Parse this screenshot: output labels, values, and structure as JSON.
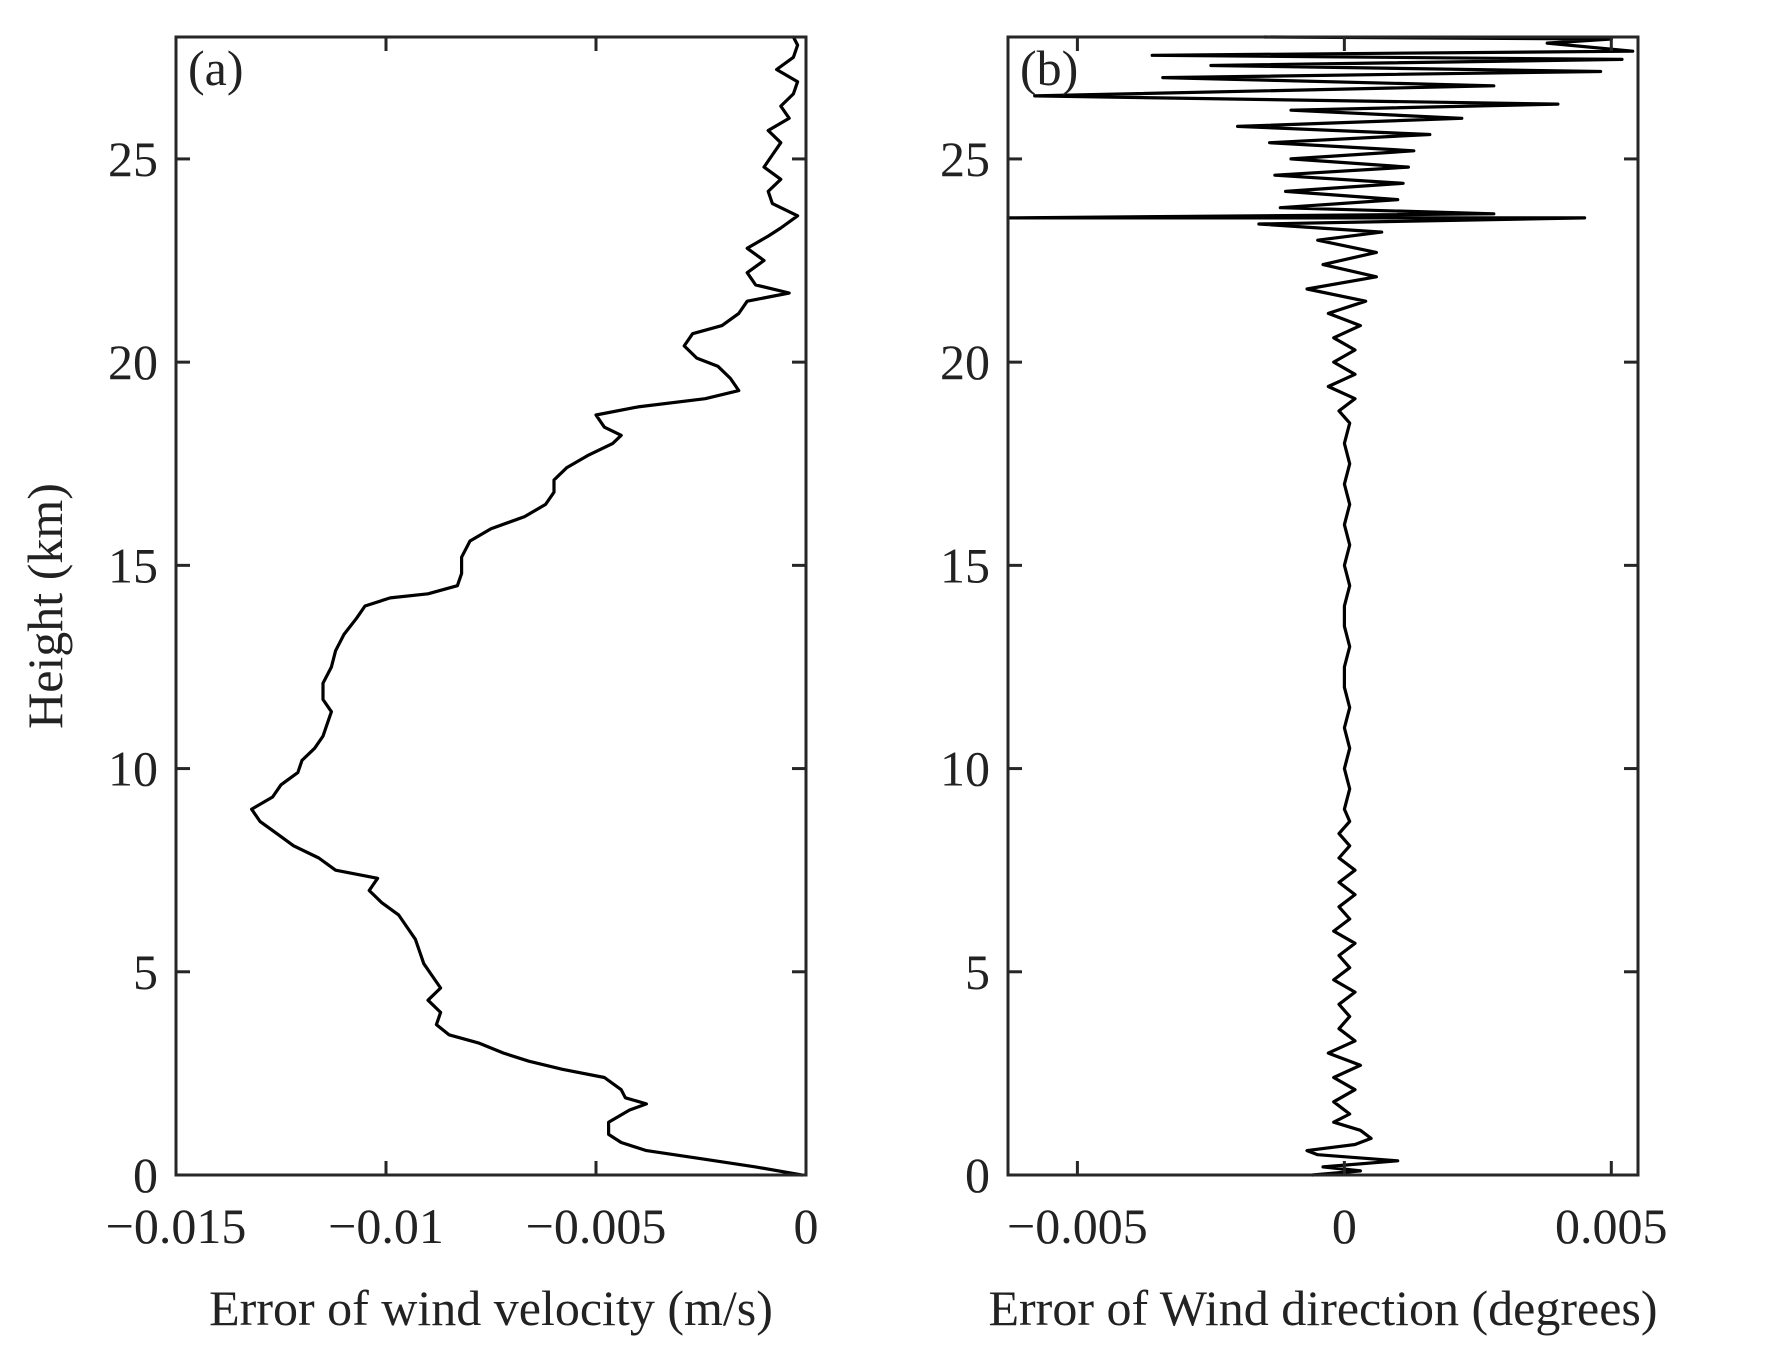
{
  "chart_data": [
    {
      "type": "line",
      "panel_label": "(a)",
      "xlabel": "Error of wind velocity (m/s)",
      "ylabel": "Height (km)",
      "xlim": [
        -0.015,
        0
      ],
      "ylim": [
        0,
        28
      ],
      "xticks": [
        -0.015,
        -0.01,
        -0.005,
        0
      ],
      "xtick_labels": [
        "−0.015",
        "−0.01",
        "−0.005",
        "0"
      ],
      "yticks": [
        0,
        5,
        10,
        15,
        20,
        25
      ],
      "ytick_labels": [
        "0",
        "5",
        "10",
        "15",
        "20",
        "25"
      ],
      "grid": false,
      "series": [
        {
          "color": "#000000",
          "points": [
            [
              -0.0001,
              0.0
            ],
            [
              -0.0012,
              0.2
            ],
            [
              -0.0025,
              0.4
            ],
            [
              -0.0038,
              0.6
            ],
            [
              -0.0044,
              0.8
            ],
            [
              -0.0047,
              1.0
            ],
            [
              -0.0047,
              1.3
            ],
            [
              -0.0042,
              1.6
            ],
            [
              -0.0038,
              1.75
            ],
            [
              -0.0043,
              1.9
            ],
            [
              -0.0044,
              2.1
            ],
            [
              -0.0048,
              2.4
            ],
            [
              -0.0058,
              2.6
            ],
            [
              -0.0066,
              2.8
            ],
            [
              -0.0072,
              3.0
            ],
            [
              -0.0078,
              3.25
            ],
            [
              -0.0085,
              3.45
            ],
            [
              -0.0088,
              3.7
            ],
            [
              -0.0087,
              4.0
            ],
            [
              -0.009,
              4.3
            ],
            [
              -0.0087,
              4.6
            ],
            [
              -0.0089,
              4.9
            ],
            [
              -0.0091,
              5.2
            ],
            [
              -0.0092,
              5.5
            ],
            [
              -0.0093,
              5.8
            ],
            [
              -0.0095,
              6.1
            ],
            [
              -0.0097,
              6.4
            ],
            [
              -0.0101,
              6.7
            ],
            [
              -0.0104,
              7.0
            ],
            [
              -0.0102,
              7.3
            ],
            [
              -0.0112,
              7.5
            ],
            [
              -0.0116,
              7.8
            ],
            [
              -0.0122,
              8.1
            ],
            [
              -0.0126,
              8.4
            ],
            [
              -0.013,
              8.7
            ],
            [
              -0.0132,
              9.0
            ],
            [
              -0.0127,
              9.3
            ],
            [
              -0.0125,
              9.6
            ],
            [
              -0.0121,
              9.9
            ],
            [
              -0.012,
              10.2
            ],
            [
              -0.0117,
              10.5
            ],
            [
              -0.0115,
              10.8
            ],
            [
              -0.0114,
              11.1
            ],
            [
              -0.0113,
              11.4
            ],
            [
              -0.0115,
              11.7
            ],
            [
              -0.0115,
              12.1
            ],
            [
              -0.0113,
              12.5
            ],
            [
              -0.0112,
              12.9
            ],
            [
              -0.011,
              13.3
            ],
            [
              -0.0107,
              13.7
            ],
            [
              -0.0105,
              14.0
            ],
            [
              -0.0099,
              14.2
            ],
            [
              -0.009,
              14.3
            ],
            [
              -0.0083,
              14.5
            ],
            [
              -0.0082,
              14.8
            ],
            [
              -0.0082,
              15.2
            ],
            [
              -0.008,
              15.6
            ],
            [
              -0.0075,
              15.9
            ],
            [
              -0.0067,
              16.2
            ],
            [
              -0.0062,
              16.5
            ],
            [
              -0.006,
              16.8
            ],
            [
              -0.006,
              17.1
            ],
            [
              -0.0057,
              17.4
            ],
            [
              -0.0052,
              17.7
            ],
            [
              -0.0046,
              18.0
            ],
            [
              -0.0044,
              18.2
            ],
            [
              -0.0048,
              18.4
            ],
            [
              -0.005,
              18.7
            ],
            [
              -0.004,
              18.9
            ],
            [
              -0.0024,
              19.1
            ],
            [
              -0.0016,
              19.3
            ],
            [
              -0.0018,
              19.6
            ],
            [
              -0.0021,
              19.9
            ],
            [
              -0.0026,
              20.1
            ],
            [
              -0.0029,
              20.4
            ],
            [
              -0.0027,
              20.7
            ],
            [
              -0.002,
              20.9
            ],
            [
              -0.0016,
              21.2
            ],
            [
              -0.0014,
              21.5
            ],
            [
              -0.0004,
              21.7
            ],
            [
              -0.0012,
              21.9
            ],
            [
              -0.0014,
              22.2
            ],
            [
              -0.001,
              22.5
            ],
            [
              -0.0014,
              22.8
            ],
            [
              -0.0009,
              23.1
            ],
            [
              -0.0006,
              23.3
            ],
            [
              -0.0002,
              23.6
            ],
            [
              -0.0008,
              23.9
            ],
            [
              -0.0009,
              24.2
            ],
            [
              -0.0006,
              24.5
            ],
            [
              -0.001,
              24.8
            ],
            [
              -0.0008,
              25.1
            ],
            [
              -0.0006,
              25.4
            ],
            [
              -0.0009,
              25.7
            ],
            [
              -0.0004,
              26.0
            ],
            [
              -0.0006,
              26.3
            ],
            [
              -0.0003,
              26.6
            ],
            [
              -0.0002,
              26.9
            ],
            [
              -0.0007,
              27.2
            ],
            [
              -0.0003,
              27.5
            ],
            [
              -0.0002,
              27.8
            ],
            [
              -0.0003,
              28.0
            ]
          ]
        }
      ]
    },
    {
      "type": "line",
      "panel_label": "(b)",
      "xlabel": "Error of Wind direction (degrees)",
      "ylabel": "",
      "xlim": [
        -0.0063,
        0.0055
      ],
      "ylim": [
        0,
        28
      ],
      "xticks": [
        -0.005,
        0,
        0.005
      ],
      "xtick_labels": [
        "−0.005",
        "0",
        "0.005"
      ],
      "yticks": [
        0,
        5,
        10,
        15,
        20,
        25
      ],
      "ytick_labels": [
        "0",
        "5",
        "10",
        "15",
        "20",
        "25"
      ],
      "grid": false,
      "series": [
        {
          "color": "#000000",
          "points": [
            [
              -0.0006,
              0.0
            ],
            [
              0.0003,
              0.1
            ],
            [
              -0.0004,
              0.2
            ],
            [
              0.001,
              0.35
            ],
            [
              -0.0005,
              0.5
            ],
            [
              -0.0007,
              0.6
            ],
            [
              0.0002,
              0.75
            ],
            [
              0.0005,
              0.9
            ],
            [
              0.0003,
              1.1
            ],
            [
              -0.0002,
              1.3
            ],
            [
              0.0001,
              1.5
            ],
            [
              -0.0002,
              1.8
            ],
            [
              0.0002,
              2.1
            ],
            [
              -0.0002,
              2.4
            ],
            [
              0.0003,
              2.7
            ],
            [
              -0.0003,
              3.0
            ],
            [
              0.0002,
              3.3
            ],
            [
              -0.0001,
              3.6
            ],
            [
              0.0001,
              3.9
            ],
            [
              -0.0001,
              4.2
            ],
            [
              0.0002,
              4.5
            ],
            [
              -0.0002,
              4.8
            ],
            [
              0.0001,
              5.1
            ],
            [
              -0.0001,
              5.4
            ],
            [
              0.0002,
              5.7
            ],
            [
              -0.0002,
              6.0
            ],
            [
              0.0001,
              6.3
            ],
            [
              -0.0001,
              6.6
            ],
            [
              0.0002,
              6.9
            ],
            [
              -0.0001,
              7.2
            ],
            [
              0.0002,
              7.5
            ],
            [
              -0.0001,
              7.8
            ],
            [
              0.0001,
              8.1
            ],
            [
              -0.0001,
              8.4
            ],
            [
              0.0001,
              8.7
            ],
            [
              0.0,
              9.0
            ],
            [
              0.0001,
              9.5
            ],
            [
              0.0,
              10.0
            ],
            [
              0.0001,
              10.5
            ],
            [
              0.0,
              11.0
            ],
            [
              0.0001,
              11.5
            ],
            [
              0.0,
              12.0
            ],
            [
              0.0,
              12.5
            ],
            [
              0.0001,
              13.0
            ],
            [
              0.0,
              13.5
            ],
            [
              0.0,
              14.0
            ],
            [
              0.0001,
              14.5
            ],
            [
              0.0,
              15.0
            ],
            [
              0.0001,
              15.5
            ],
            [
              0.0,
              16.0
            ],
            [
              0.0001,
              16.5
            ],
            [
              0.0,
              17.0
            ],
            [
              0.0001,
              17.5
            ],
            [
              0.0,
              18.0
            ],
            [
              0.0001,
              18.5
            ],
            [
              -0.0001,
              18.8
            ],
            [
              0.0002,
              19.1
            ],
            [
              -0.0003,
              19.4
            ],
            [
              0.0002,
              19.7
            ],
            [
              -0.0002,
              20.0
            ],
            [
              0.0002,
              20.3
            ],
            [
              -0.0002,
              20.6
            ],
            [
              0.0003,
              20.9
            ],
            [
              -0.0003,
              21.2
            ],
            [
              0.0004,
              21.5
            ],
            [
              -0.0007,
              21.8
            ],
            [
              0.0006,
              22.1
            ],
            [
              -0.0004,
              22.4
            ],
            [
              0.0006,
              22.7
            ],
            [
              -0.0005,
              23.0
            ],
            [
              0.0007,
              23.2
            ],
            [
              -0.0016,
              23.4
            ],
            [
              0.0045,
              23.55
            ],
            [
              -0.0063,
              23.55
            ],
            [
              0.0028,
              23.65
            ],
            [
              -0.0012,
              23.8
            ],
            [
              0.001,
              24.0
            ],
            [
              -0.0011,
              24.2
            ],
            [
              0.0011,
              24.4
            ],
            [
              -0.0013,
              24.6
            ],
            [
              0.0012,
              24.8
            ],
            [
              -0.001,
              25.0
            ],
            [
              0.0013,
              25.2
            ],
            [
              -0.0014,
              25.4
            ],
            [
              0.0016,
              25.6
            ],
            [
              -0.002,
              25.8
            ],
            [
              0.0022,
              26.0
            ],
            [
              -0.001,
              26.2
            ],
            [
              0.004,
              26.35
            ],
            [
              -0.0058,
              26.55
            ],
            [
              0.0028,
              26.8
            ],
            [
              -0.0034,
              27.0
            ],
            [
              0.0048,
              27.15
            ],
            [
              -0.0025,
              27.3
            ],
            [
              0.0052,
              27.45
            ],
            [
              -0.0036,
              27.55
            ],
            [
              0.0054,
              27.65
            ],
            [
              0.0038,
              27.85
            ],
            [
              0.005,
              27.95
            ],
            [
              -0.0015,
              28.0
            ]
          ]
        }
      ]
    }
  ]
}
